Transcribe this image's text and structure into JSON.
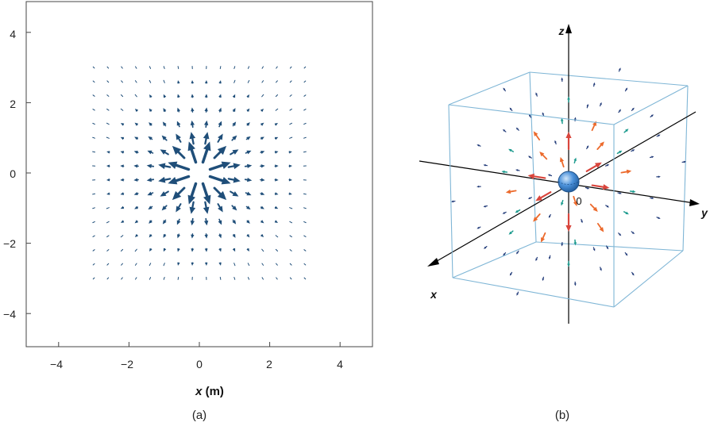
{
  "panel_a": {
    "caption": "(a)",
    "xlabel_var": "x",
    "xlabel_unit": " (m)",
    "x_ticks": [
      "−4",
      "−2",
      "0",
      "2",
      "4"
    ],
    "y_ticks": [
      "4",
      "2",
      "0",
      "−2",
      "−4"
    ],
    "colors": {
      "arrow": "#1f4e79",
      "frame": "#444444"
    }
  },
  "panel_b": {
    "caption": "(b)",
    "axis_x": "x",
    "axis_y": "y",
    "axis_z": "z",
    "origin": "0",
    "colors": {
      "cube": "#7fb6d6",
      "charge": "#4a90d9",
      "arrow_strong": "#d9463d",
      "arrow_mid": "#ec6a2c",
      "arrow_weak": "#1c9b8e",
      "arrow_faint": "#203a78",
      "axis": "#000000"
    }
  },
  "chart_data": {
    "type": "scatter",
    "title": "",
    "xlabel": "x (m)",
    "ylabel": "",
    "xlim": [
      -5,
      5
    ],
    "ylim": [
      -5,
      5
    ],
    "grid": false,
    "field": "radial outward from a point charge at origin",
    "grid_range": [
      -3,
      3
    ],
    "grid_step": 0.4
  }
}
